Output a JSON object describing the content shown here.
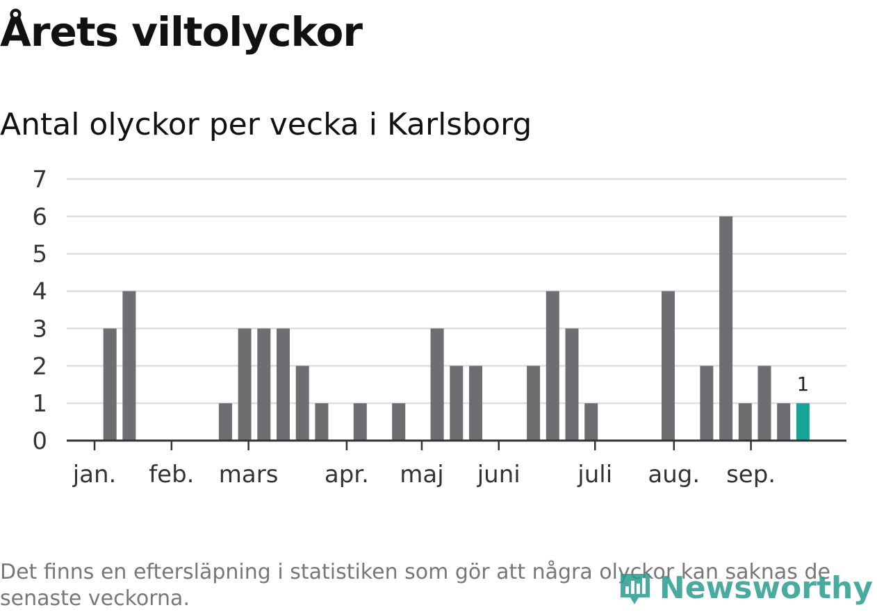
{
  "title": "Årets viltolyckor",
  "subtitle": "Antal olyckor per vecka i Karlsborg",
  "footnote": "Det finns en eftersläpning i statistiken som gör att några olyckor kan saknas de senaste veckorna.",
  "logo_text": "Newsworthy",
  "colors": {
    "bar": "#6e6d72",
    "highlight": "#17a398",
    "grid": "#dddddd",
    "axis": "#333333"
  },
  "chart_data": {
    "type": "bar",
    "title": "Antal olyckor per vecka i Karlsborg",
    "xlabel": "",
    "ylabel": "",
    "ylim": [
      0,
      7
    ],
    "yticks": [
      0,
      1,
      2,
      3,
      4,
      5,
      6,
      7
    ],
    "grid": true,
    "x": [
      1,
      2,
      3,
      4,
      5,
      6,
      7,
      8,
      9,
      10,
      11,
      12,
      13,
      14,
      15,
      16,
      17,
      18,
      19,
      20,
      21,
      22,
      23,
      24,
      25,
      26,
      27,
      28,
      29,
      30,
      31,
      32,
      33,
      34,
      35,
      36,
      37,
      38
    ],
    "values": [
      0,
      3,
      4,
      0,
      0,
      0,
      0,
      1,
      3,
      3,
      3,
      2,
      1,
      0,
      1,
      0,
      1,
      0,
      3,
      2,
      2,
      0,
      0,
      2,
      4,
      3,
      1,
      0,
      0,
      0,
      4,
      0,
      2,
      6,
      1,
      2,
      1,
      1
    ],
    "highlight_index": 37,
    "data_labels": [
      {
        "index": 37,
        "text": "1"
      }
    ],
    "month_ticks": [
      {
        "label": "jan.",
        "week": 1.2
      },
      {
        "label": "feb.",
        "week": 5.2
      },
      {
        "label": "mars",
        "week": 9.2
      },
      {
        "label": "apr.",
        "week": 14.3
      },
      {
        "label": "maj",
        "week": 18.2
      },
      {
        "label": "juni",
        "week": 22.2
      },
      {
        "label": "juli",
        "week": 27.2
      },
      {
        "label": "aug.",
        "week": 31.3
      },
      {
        "label": "sep.",
        "week": 35.3
      }
    ]
  }
}
